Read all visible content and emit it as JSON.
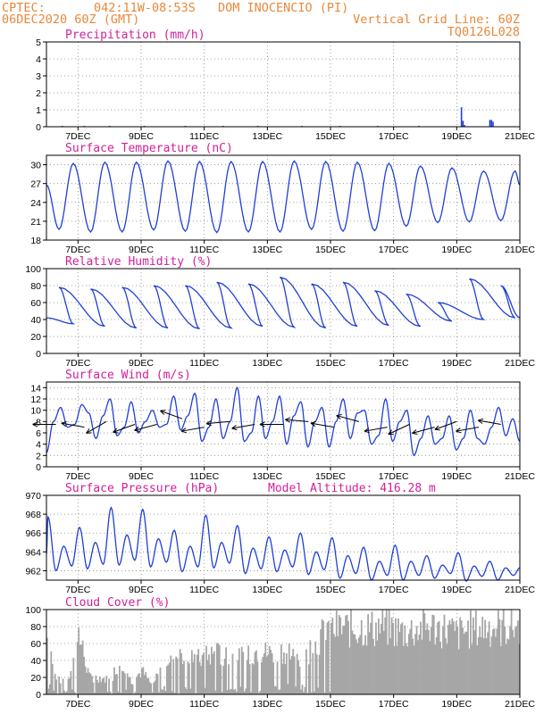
{
  "header": {
    "org": "CPTEC:",
    "coords": "042:11W-08:53S",
    "location": "DOM INOCENCIO (PI)",
    "date_time": "06DEC2020 60Z (GMT)",
    "grid_note": "Vertical Grid Line: 60Z",
    "code": "TQ0126L028"
  },
  "x_axis": {
    "ticks": [
      1,
      3,
      5,
      7,
      9,
      11,
      13,
      15
    ],
    "tick_labels": [
      "7DEC",
      "9DEC",
      "11DEC",
      "13DEC",
      "15DEC",
      "17DEC",
      "19DEC",
      "21DEC"
    ],
    "range": [
      0,
      15
    ]
  },
  "panels": [
    {
      "title": "Precipitation (mm/h)",
      "extra": ""
    },
    {
      "title": "Surface Temperature (nC)",
      "extra": ""
    },
    {
      "title": "Relative Humidity (%)",
      "extra": ""
    },
    {
      "title": "Surface Wind (m/s)",
      "extra": ""
    },
    {
      "title": "Surface Pressure (hPa)",
      "extra": "Model Altitude: 416.28 m"
    },
    {
      "title": "Cloud Cover (%)",
      "extra": ""
    }
  ],
  "chart_data": [
    {
      "type": "bar",
      "title": "Precipitation (mm/h)",
      "x_unit": "days since 6DEC 00Z",
      "ylim": [
        0,
        5
      ],
      "yticks": [
        0,
        1,
        2,
        3,
        4,
        5
      ],
      "x": [
        0.5,
        1.2,
        2.0,
        3.1,
        4.4,
        5.6,
        6.7,
        8.1,
        9.3,
        10.5,
        11.8,
        13.15,
        13.2,
        13.25,
        14.05,
        14.1,
        14.15
      ],
      "values": [
        0.02,
        0.03,
        0.02,
        0.03,
        0.02,
        0.02,
        0.03,
        0.02,
        0.02,
        0.03,
        0.02,
        1.15,
        0.35,
        0.1,
        0.4,
        0.4,
        0.3
      ]
    },
    {
      "type": "line",
      "title": "Surface Temperature (nC)",
      "ylim": [
        18,
        31.5
      ],
      "yticks": [
        18,
        21,
        24,
        27,
        30
      ],
      "daily": {
        "max": [
          30.2,
          30.4,
          30.4,
          30.6,
          30.5,
          30.5,
          30.5,
          30.6,
          30.5,
          30.4,
          30.2,
          29.8,
          29.5,
          29.0,
          29.0
        ],
        "min": [
          19.7,
          19.3,
          19.3,
          19.6,
          19.4,
          19.2,
          19.3,
          19.3,
          19.7,
          19.4,
          19.5,
          20.2,
          20.8,
          20.9,
          21.1
        ],
        "start": 26.8
      }
    },
    {
      "type": "line",
      "title": "Relative Humidity (%)",
      "ylim": [
        0,
        100
      ],
      "yticks": [
        0,
        20,
        40,
        60,
        80,
        100
      ],
      "daily": {
        "max": [
          78,
          76,
          78,
          80,
          80,
          84,
          82,
          90,
          82,
          84,
          74,
          70,
          60,
          88,
          80
        ],
        "min": [
          35,
          32,
          30,
          30,
          29,
          30,
          32,
          31,
          30,
          32,
          33,
          32,
          38,
          40,
          42
        ],
        "start": 42
      }
    },
    {
      "type": "line",
      "title": "Surface Wind (m/s)",
      "ylim": [
        0,
        15
      ],
      "yticks": [
        0,
        2,
        4,
        6,
        8,
        10,
        12,
        14
      ],
      "speed": [
        2.5,
        8.0,
        10.5,
        7.0,
        7.5,
        11.0,
        9.5,
        5.0,
        9.0,
        12.0,
        5.5,
        7.0,
        11.5,
        6.0,
        8.0,
        10.0,
        7.0,
        7.5,
        12.5,
        6.5,
        9.0,
        13.0,
        4.5,
        7.0,
        12.0,
        5.0,
        8.0,
        14.0,
        4.5,
        6.0,
        12.5,
        5.0,
        8.0,
        12.5,
        4.0,
        9.0,
        11.5,
        3.5,
        8.0,
        10.5,
        3.5,
        8.0,
        12.0,
        5.0,
        9.5,
        10.0,
        4.0,
        5.5,
        12.0,
        4.5,
        8.0,
        10.0,
        2.0,
        5.0,
        9.0,
        4.0,
        5.0,
        9.0,
        3.0,
        5.0,
        10.0,
        5.0,
        4.0,
        7.0,
        10.5,
        5.5,
        8.5,
        4.5
      ],
      "wind_vectors": {
        "x": [
          0.3,
          1.2,
          1.9,
          2.8,
          3.5,
          4.3,
          5.0,
          5.8,
          6.6,
          7.5,
          8.3,
          9.1,
          9.9,
          10.8,
          11.5,
          12.3,
          13.0,
          13.7,
          14.4
        ],
        "speed": [
          7.5,
          7.0,
          8.0,
          7.5,
          7.5,
          8.5,
          7.0,
          8.0,
          7.5,
          7.5,
          8.0,
          7.0,
          8.0,
          7.0,
          7.5,
          7.0,
          8.0,
          7.0,
          7.5
        ],
        "dir_deg": [
          180,
          170,
          210,
          200,
          195,
          160,
          190,
          185,
          190,
          180,
          175,
          170,
          165,
          190,
          205,
          195,
          200,
          190,
          170
        ]
      }
    },
    {
      "type": "line",
      "title": "Surface Pressure (hPa)",
      "ylim": [
        961,
        970
      ],
      "yticks": [
        962,
        964,
        966,
        968,
        970
      ],
      "daily": {
        "max": [
          967.7,
          966.6,
          968.7,
          968.5,
          966.3,
          967.9,
          966.8,
          965.6,
          966.0,
          965.5,
          964.5,
          964.7,
          963.6,
          963.9,
          963.0
        ],
        "mid": [
          964.6,
          965.0,
          965.8,
          965.4,
          964.6,
          965.0,
          964.4,
          964.2,
          964.0,
          963.6,
          963.0,
          963.0,
          962.6,
          962.5,
          962.3
        ],
        "min": [
          962.0,
          962.2,
          962.6,
          962.4,
          961.9,
          962.3,
          961.7,
          961.9,
          961.6,
          961.2,
          961.0,
          961.0,
          961.2,
          960.9,
          961.0
        ],
        "start": 963.8
      }
    },
    {
      "type": "bar",
      "title": "Cloud Cover (%)",
      "ylim": [
        0,
        100
      ],
      "yticks": [
        0,
        20,
        40,
        60,
        80,
        100
      ],
      "daily_profile": [
        84,
        20,
        25,
        90,
        25,
        25,
        20,
        55,
        18,
        35,
        12,
        50,
        55,
        60,
        50,
        55,
        60,
        58,
        52,
        55,
        65,
        60,
        65,
        63,
        55,
        65,
        85,
        95,
        98,
        96,
        98,
        97,
        100,
        95,
        92,
        95,
        100,
        98,
        95,
        88,
        95,
        97,
        100,
        98,
        100,
        100
      ]
    }
  ]
}
